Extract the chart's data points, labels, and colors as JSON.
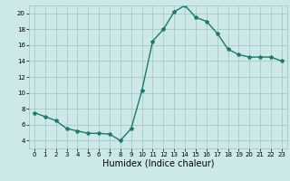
{
  "x": [
    0,
    1,
    2,
    3,
    4,
    5,
    6,
    7,
    8,
    9,
    10,
    11,
    12,
    13,
    14,
    15,
    16,
    17,
    18,
    19,
    20,
    21,
    22,
    23
  ],
  "y": [
    7.5,
    7.0,
    6.5,
    5.5,
    5.2,
    4.9,
    4.9,
    4.8,
    4.0,
    5.5,
    10.3,
    16.5,
    18.0,
    20.2,
    21.0,
    19.5,
    19.0,
    17.5,
    15.5,
    14.8,
    14.5,
    14.5,
    14.5,
    14.0
  ],
  "line_color": "#1a7a6e",
  "marker": "*",
  "marker_size": 3,
  "background_color": "#cde8e8",
  "grid_color": "#a0c4c4",
  "xlabel": "Humidex (Indice chaleur)",
  "xlim": [
    -0.5,
    23.5
  ],
  "ylim": [
    3,
    21
  ],
  "yticks": [
    4,
    6,
    8,
    10,
    12,
    14,
    16,
    18,
    20
  ],
  "xticks": [
    0,
    1,
    2,
    3,
    4,
    5,
    6,
    7,
    8,
    9,
    10,
    11,
    12,
    13,
    14,
    15,
    16,
    17,
    18,
    19,
    20,
    21,
    22,
    23
  ],
  "tick_fontsize": 5.0,
  "xlabel_fontsize": 7.0,
  "line_width": 1.0
}
